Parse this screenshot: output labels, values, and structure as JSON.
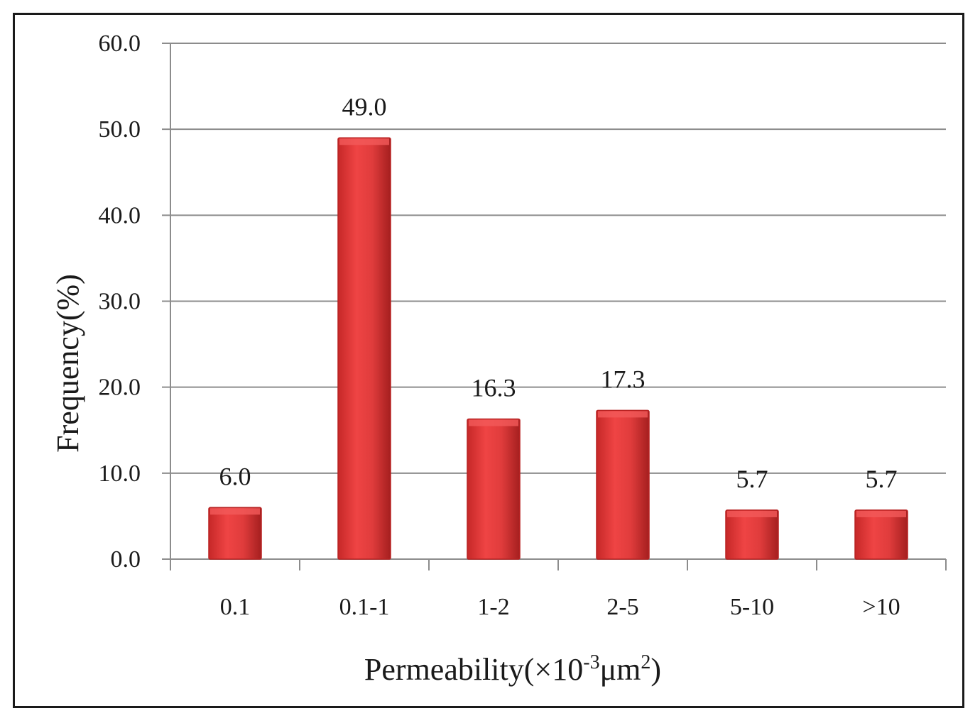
{
  "chart_data": {
    "type": "bar",
    "categories": [
      "0.1",
      "0.1-1",
      "1-2",
      "2-5",
      "5-10",
      ">10"
    ],
    "values": [
      6.0,
      49.0,
      16.3,
      17.3,
      5.7,
      5.7
    ],
    "data_labels": [
      "6.0",
      "49.0",
      "16.3",
      "17.3",
      "5.7",
      "5.7"
    ],
    "xlabel": {
      "prefix": "Permeability(",
      "times": "×",
      "base": "10",
      "exponent": "-3",
      "unit": "μm",
      "unit_exponent": "2",
      "suffix": ")"
    },
    "ylabel": "Frequency(%)",
    "ylim": [
      0,
      60
    ],
    "yticks": [
      "0.0",
      "10.0",
      "20.0",
      "30.0",
      "40.0",
      "50.0",
      "60.0"
    ],
    "grid": true,
    "colors": {
      "bar": "#e03c3c",
      "bar_dark": "#b82222",
      "bar_highlight": "#f25a5a",
      "grid": "#8c8c8c",
      "axis": "#8c8c8c"
    }
  }
}
